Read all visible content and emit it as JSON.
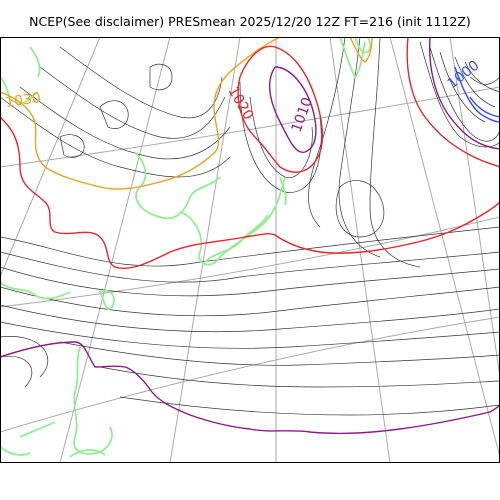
{
  "title": "NCEP(See disclaimer) PRESmean 2025/12/20 12Z FT=216 (init 1112Z)",
  "isobar_labels": [
    {
      "text": "1030",
      "color": "#f0a020"
    },
    {
      "text": "1020",
      "color": "#e8262a"
    },
    {
      "text": "1010",
      "color": "#8b1a8b"
    },
    {
      "text": "1000",
      "color": "#3050ff"
    }
  ],
  "colors": {
    "isobar": "#333333",
    "graticule": "#aaaaaa",
    "coastline": "#90ee90",
    "contour_1030": "#f0a020",
    "contour_1020": "#e8262a",
    "contour_1010": "#8b1a8b",
    "contour_1000": "#3050ff"
  }
}
